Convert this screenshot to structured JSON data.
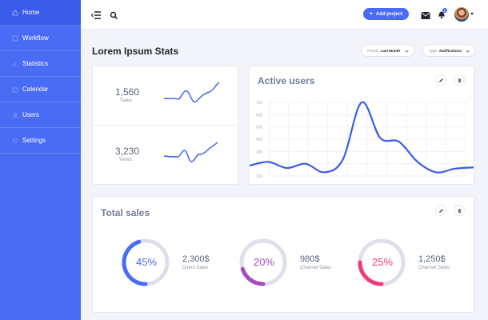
{
  "sidebar": {
    "items": [
      {
        "label": "Home",
        "icon": "home-icon"
      },
      {
        "label": "Workflow",
        "icon": "workflow-icon"
      },
      {
        "label": "Statistics",
        "icon": "statistics-icon"
      },
      {
        "label": "Calendar",
        "icon": "calendar-icon"
      },
      {
        "label": "Users",
        "icon": "users-icon"
      },
      {
        "label": "Settings",
        "icon": "settings-icon"
      }
    ],
    "color": "#4a6cf5"
  },
  "topbar": {
    "add_project_label": "Add project",
    "notification_count": "2"
  },
  "page": {
    "title": "Lorem Ipsum Stats",
    "period_label": "Period:",
    "period_value": "Last Month",
    "type_label": "Type:",
    "type_value": "Notifications"
  },
  "stats": [
    {
      "value": "1,560",
      "label": "Sales"
    },
    {
      "value": "3,230",
      "label": "Views"
    }
  ],
  "active_users": {
    "title": "Active users"
  },
  "total_sales": {
    "title": "Total sales",
    "items": [
      {
        "percent": "45%",
        "amount": "2,300$",
        "label": "Direct Sales",
        "color": "#4a6cf5",
        "fraction": 0.45
      },
      {
        "percent": "20%",
        "amount": "980$",
        "label": "Channel Sales",
        "color": "#a64bbf",
        "fraction": 0.2
      },
      {
        "percent": "25%",
        "amount": "1,250$",
        "label": "Channel Sales",
        "color": "#ef3b7c",
        "fraction": 0.25
      }
    ]
  },
  "chart_data": {
    "type": "line",
    "title": "Active users",
    "x": [
      0,
      1,
      2,
      3,
      4,
      5,
      6,
      7,
      8,
      9,
      10,
      11,
      12
    ],
    "series": [
      {
        "values": [
          185,
          215,
          165,
          200,
          130,
          235,
          700,
          410,
          380,
          215,
          130,
          160,
          170
        ]
      }
    ],
    "yticks": [
      "700",
      "600",
      "500",
      "400",
      "300",
      "200",
      "100"
    ],
    "ylim": [
      100,
      700
    ],
    "grid": true,
    "color": "#3b5ce8"
  }
}
